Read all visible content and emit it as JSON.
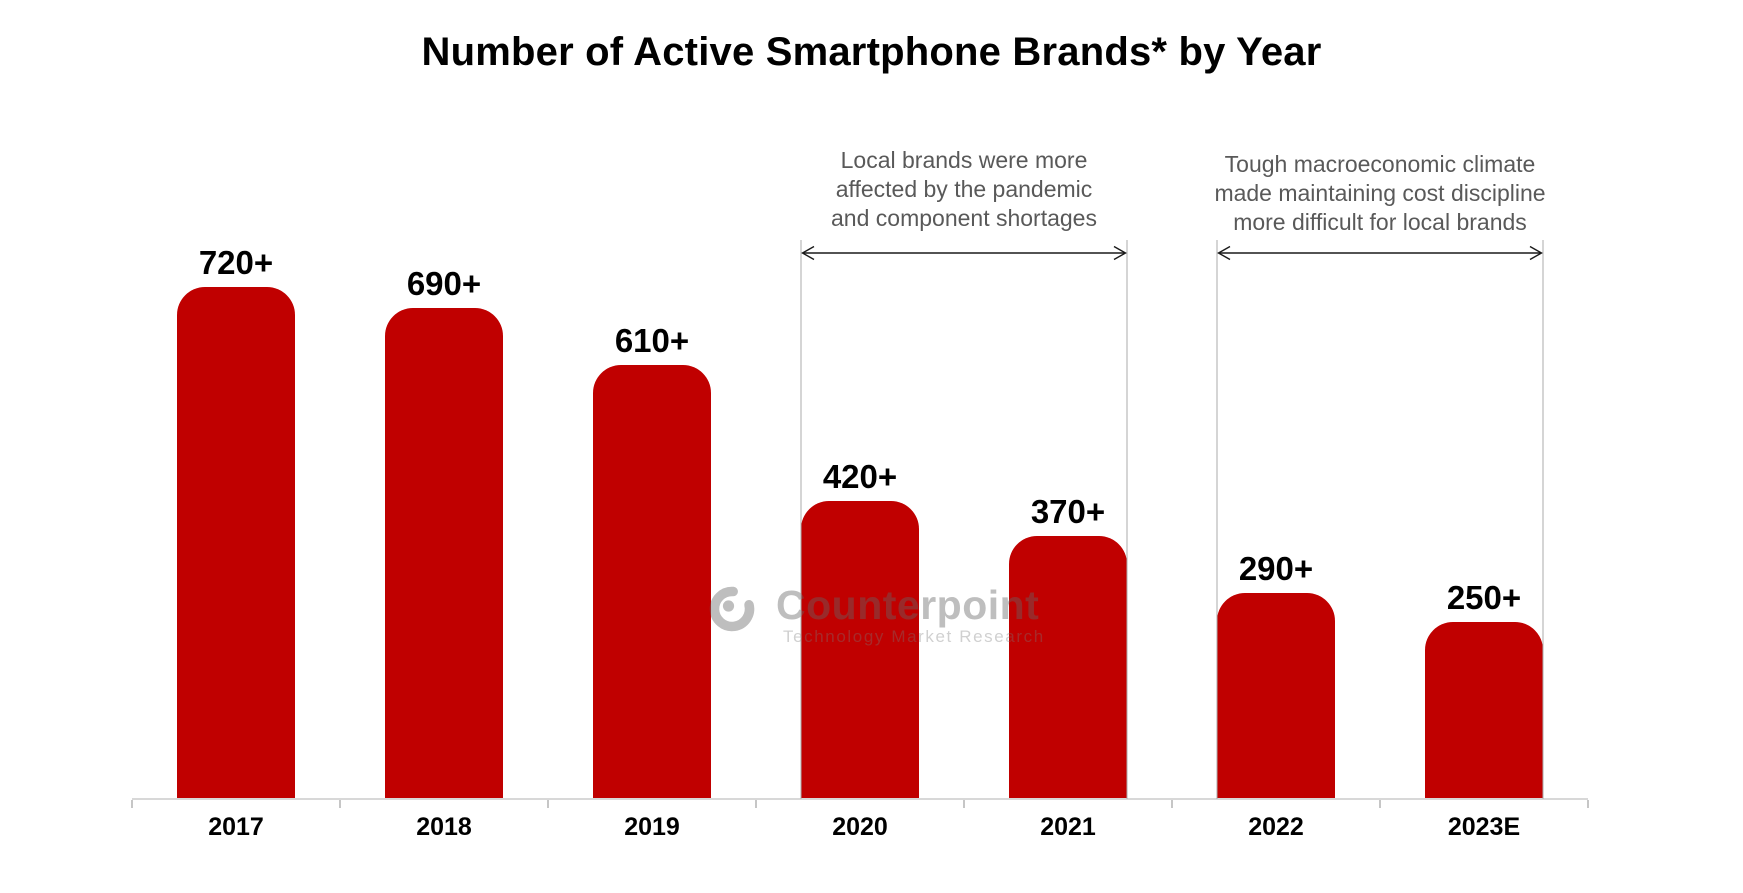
{
  "title": "Number of Active Smartphone Brands* by Year",
  "watermark": {
    "brand": "Counterpoint",
    "tagline": "Technology Market Research"
  },
  "annotations": [
    {
      "lines": [
        "Local brands were more",
        "affected by the pandemic",
        "and component shortages"
      ],
      "span_categories": [
        "2020",
        "2021"
      ]
    },
    {
      "lines": [
        "Tough macroeconomic climate",
        "made maintaining cost discipline",
        "more difficult for local brands"
      ],
      "span_categories": [
        "2022",
        "2023E"
      ]
    }
  ],
  "chart_data": {
    "type": "bar",
    "title": "Number of Active Smartphone Brands* by Year",
    "categories": [
      "2017",
      "2018",
      "2019",
      "2020",
      "2021",
      "2022",
      "2023E"
    ],
    "values": [
      720,
      690,
      610,
      420,
      370,
      290,
      250
    ],
    "value_labels": [
      "720+",
      "690+",
      "610+",
      "420+",
      "370+",
      "290+",
      "250+"
    ],
    "xlabel": "",
    "ylabel": "",
    "y_axis_visible": false,
    "gridlines": false,
    "legend": null,
    "bar_shape": "rounded-top",
    "bar_color": "#C00000"
  },
  "colors": {
    "bar": "#C00000",
    "title_text": "#000000",
    "annotation_text": "#595959",
    "axis_line": "#D8D8D8",
    "axis_tick": "#C6C6C6",
    "bracket_line": "#ABABAB",
    "arrow": "#1A1A1A",
    "watermark_gray": "#BEBEBE"
  }
}
